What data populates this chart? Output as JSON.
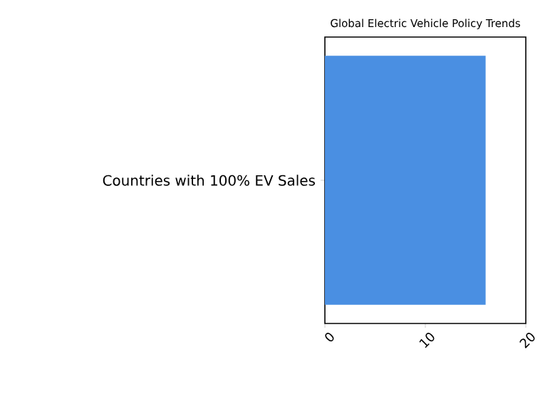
{
  "chart_data": {
    "type": "bar",
    "orientation": "horizontal",
    "title": "Global Electric Vehicle Policy Trends",
    "categories": [
      "Countries with 100% EV Sales"
    ],
    "values": [
      16
    ],
    "color": "#4a8fe2",
    "xlim": [
      0,
      20
    ],
    "xticks": [
      0,
      10,
      20
    ]
  }
}
